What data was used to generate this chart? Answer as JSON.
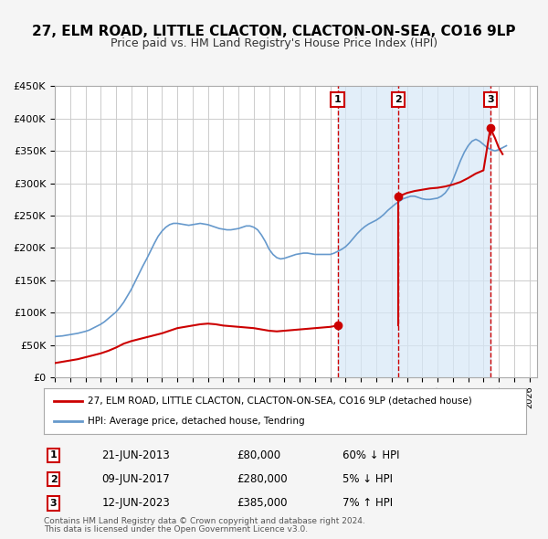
{
  "title": "27, ELM ROAD, LITTLE CLACTON, CLACTON-ON-SEA, CO16 9LP",
  "subtitle": "Price paid vs. HM Land Registry's House Price Index (HPI)",
  "title_fontsize": 11,
  "subtitle_fontsize": 9,
  "ylabel": "",
  "ylim": [
    0,
    450000
  ],
  "yticks": [
    0,
    50000,
    100000,
    150000,
    200000,
    250000,
    300000,
    350000,
    400000,
    450000
  ],
  "ytick_labels": [
    "£0",
    "£50K",
    "£100K",
    "£150K",
    "£200K",
    "£250K",
    "£300K",
    "£350K",
    "£400K",
    "£450K"
  ],
  "xlim_start": 1995.0,
  "xlim_end": 2026.5,
  "background_color": "#f5f5f5",
  "plot_bg_color": "#ffffff",
  "grid_color": "#cccccc",
  "hpi_color": "#6699cc",
  "price_color": "#cc0000",
  "shade_color": "#d6e8f7",
  "dashed_line_color": "#cc0000",
  "transaction_dates": [
    2013.47,
    2017.44,
    2023.45
  ],
  "transaction_prices": [
    80000,
    280000,
    385000
  ],
  "transaction_labels": [
    "1",
    "2",
    "3"
  ],
  "transaction_info": [
    {
      "label": "1",
      "date": "21-JUN-2013",
      "price": "£80,000",
      "hpi": "60% ↓ HPI"
    },
    {
      "label": "2",
      "date": "09-JUN-2017",
      "price": "£280,000",
      "hpi": "5% ↓ HPI"
    },
    {
      "label": "3",
      "date": "12-JUN-2023",
      "price": "£385,000",
      "hpi": "7% ↑ HPI"
    }
  ],
  "legend_line1": "27, ELM ROAD, LITTLE CLACTON, CLACTON-ON-SEA, CO16 9LP (detached house)",
  "legend_line2": "HPI: Average price, detached house, Tendring",
  "footer_line1": "Contains HM Land Registry data © Crown copyright and database right 2024.",
  "footer_line2": "This data is licensed under the Open Government Licence v3.0.",
  "hpi_data_x": [
    1995.0,
    1995.25,
    1995.5,
    1995.75,
    1996.0,
    1996.25,
    1996.5,
    1996.75,
    1997.0,
    1997.25,
    1997.5,
    1997.75,
    1998.0,
    1998.25,
    1998.5,
    1998.75,
    1999.0,
    1999.25,
    1999.5,
    1999.75,
    2000.0,
    2000.25,
    2000.5,
    2000.75,
    2001.0,
    2001.25,
    2001.5,
    2001.75,
    2002.0,
    2002.25,
    2002.5,
    2002.75,
    2003.0,
    2003.25,
    2003.5,
    2003.75,
    2004.0,
    2004.25,
    2004.5,
    2004.75,
    2005.0,
    2005.25,
    2005.5,
    2005.75,
    2006.0,
    2006.25,
    2006.5,
    2006.75,
    2007.0,
    2007.25,
    2007.5,
    2007.75,
    2008.0,
    2008.25,
    2008.5,
    2008.75,
    2009.0,
    2009.25,
    2009.5,
    2009.75,
    2010.0,
    2010.25,
    2010.5,
    2010.75,
    2011.0,
    2011.25,
    2011.5,
    2011.75,
    2012.0,
    2012.25,
    2012.5,
    2012.75,
    2013.0,
    2013.25,
    2013.5,
    2013.75,
    2014.0,
    2014.25,
    2014.5,
    2014.75,
    2015.0,
    2015.25,
    2015.5,
    2015.75,
    2016.0,
    2016.25,
    2016.5,
    2016.75,
    2017.0,
    2017.25,
    2017.5,
    2017.75,
    2018.0,
    2018.25,
    2018.5,
    2018.75,
    2019.0,
    2019.25,
    2019.5,
    2019.75,
    2020.0,
    2020.25,
    2020.5,
    2020.75,
    2021.0,
    2021.25,
    2021.5,
    2021.75,
    2022.0,
    2022.25,
    2022.5,
    2022.75,
    2023.0,
    2023.25,
    2023.5,
    2023.75,
    2024.0,
    2024.25,
    2024.5
  ],
  "hpi_data_y": [
    63000,
    63500,
    64000,
    65000,
    66000,
    67000,
    68000,
    69500,
    71000,
    73000,
    76000,
    79000,
    82000,
    86000,
    91000,
    96000,
    101000,
    108000,
    116000,
    126000,
    136000,
    148000,
    160000,
    172000,
    183000,
    195000,
    207000,
    218000,
    226000,
    232000,
    236000,
    238000,
    238000,
    237000,
    236000,
    235000,
    236000,
    237000,
    238000,
    237000,
    236000,
    234000,
    232000,
    230000,
    229000,
    228000,
    228000,
    229000,
    230000,
    232000,
    234000,
    234000,
    232000,
    228000,
    220000,
    210000,
    198000,
    190000,
    185000,
    183000,
    184000,
    186000,
    188000,
    190000,
    191000,
    192000,
    192000,
    191000,
    190000,
    190000,
    190000,
    190000,
    190000,
    192000,
    195000,
    198000,
    202000,
    208000,
    215000,
    222000,
    228000,
    233000,
    237000,
    240000,
    243000,
    247000,
    252000,
    258000,
    263000,
    268000,
    272000,
    276000,
    278000,
    280000,
    280000,
    278000,
    276000,
    275000,
    275000,
    276000,
    277000,
    280000,
    285000,
    293000,
    305000,
    320000,
    335000,
    348000,
    358000,
    365000,
    368000,
    365000,
    360000,
    355000,
    352000,
    350000,
    352000,
    355000,
    358000
  ],
  "price_data_x": [
    1995.0,
    1995.5,
    1996.0,
    1996.5,
    1997.0,
    1997.5,
    1998.0,
    1998.5,
    1999.0,
    1999.5,
    2000.0,
    2000.5,
    2001.0,
    2001.5,
    2002.0,
    2002.5,
    2003.0,
    2003.5,
    2004.0,
    2004.5,
    2005.0,
    2005.5,
    2006.0,
    2006.5,
    2007.0,
    2007.5,
    2008.0,
    2008.5,
    2009.0,
    2009.5,
    2010.0,
    2010.5,
    2011.0,
    2011.5,
    2012.0,
    2012.5,
    2013.0,
    2013.47,
    2017.44,
    2017.5,
    2018.0,
    2018.5,
    2019.0,
    2019.5,
    2020.0,
    2020.5,
    2021.0,
    2021.5,
    2022.0,
    2022.5,
    2023.0,
    2023.45,
    2023.75,
    2024.0,
    2024.25
  ],
  "price_data_y": [
    22000,
    24000,
    26000,
    28000,
    31000,
    34000,
    37000,
    41000,
    46000,
    52000,
    56000,
    59000,
    62000,
    65000,
    68000,
    72000,
    76000,
    78000,
    80000,
    82000,
    83000,
    82000,
    80000,
    79000,
    78000,
    77000,
    76000,
    74000,
    72000,
    71000,
    72000,
    73000,
    74000,
    75000,
    76000,
    77000,
    78000,
    80000,
    280000,
    280000,
    285000,
    288000,
    290000,
    292000,
    293000,
    295000,
    298000,
    302000,
    308000,
    315000,
    320000,
    385000,
    370000,
    355000,
    345000
  ]
}
